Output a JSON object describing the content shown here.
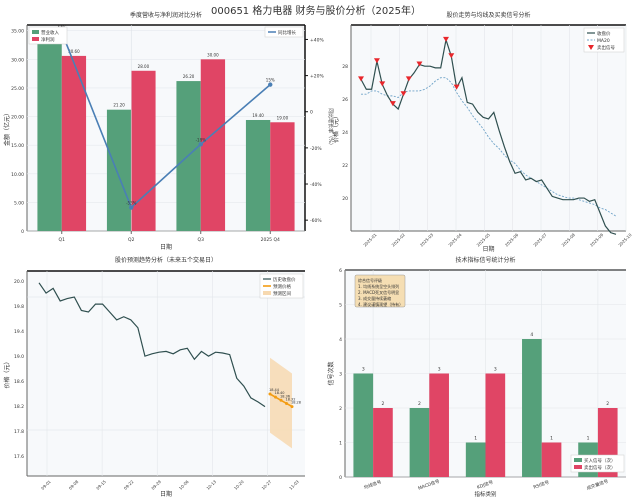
{
  "suptitle": "000651 格力电器 财务与股价分析（2025年）",
  "chart_data": [
    {
      "type": "bar",
      "title": "季度营收与净利润对比分析",
      "xlabel": "日期",
      "ylabel": "金额（亿元）",
      "y2label": "同比增长率（%）",
      "categories": [
        "Q1",
        "Q2",
        "Q3",
        "2025 Q4"
      ],
      "series": [
        {
          "name": "营业收入",
          "color": "#55a07a",
          "values": [
            34.0,
            21.2,
            26.2,
            19.4
          ]
        },
        {
          "name": "净利润",
          "color": "#e04565",
          "values": [
            30.6,
            28.0,
            30.0,
            19.0
          ]
        }
      ],
      "line_series": {
        "name": "同比增长",
        "color": "#4a7fb5",
        "values": [
          44,
          -53,
          -18,
          15
        ]
      },
      "yticks": [
        "0",
        "5.00",
        "10.00",
        "15.00",
        "20.00",
        "25.00",
        "30.00",
        "35.00"
      ],
      "ylim": [
        0,
        36
      ],
      "y2ticks": [
        "-60%",
        "-40%",
        "-20%",
        "0",
        "+20%",
        "+40%"
      ],
      "y2lim": [
        -66,
        48
      ],
      "legend_left": "top-left",
      "legend_right": "top-right",
      "grid": true
    },
    {
      "type": "line",
      "title": "股价走势与均线及买卖信号分析",
      "xlabel": "日期",
      "ylabel": "价格（元）",
      "series": [
        {
          "name": "收盘价",
          "color": "#2f4f4f",
          "style": "solid",
          "values": [
            27.2,
            26.6,
            26.6,
            28.3,
            26.9,
            26.2,
            25.7,
            25.4,
            26.3,
            27.2,
            27.6,
            28.1,
            28.0,
            28.0,
            27.9,
            27.9,
            29.6,
            28.6,
            26.7,
            27.3,
            25.8,
            25.7,
            25.2,
            24.9,
            24.8,
            25.2,
            24.1,
            23.1,
            22.2,
            21.5,
            21.6,
            21.1,
            21.2,
            21.0,
            21.1,
            20.6,
            20.1,
            20.0,
            19.9,
            19.9,
            19.9,
            20.0,
            20.0,
            19.8,
            19.9,
            19.1,
            18.3,
            17.9,
            17.8
          ]
        },
        {
          "name": "MA20",
          "color": "#6fa3c8",
          "style": "dashed",
          "values": [
            26.3,
            26.3,
            26.5,
            26.5,
            26.3,
            26.2,
            26.2,
            26.1,
            26.4,
            26.5,
            26.5,
            26.5,
            26.6,
            26.8,
            27.1,
            27.3,
            27.3,
            27.0,
            26.4,
            25.9,
            25.5,
            25.0,
            24.6,
            24.2,
            23.7,
            23.3,
            23.0,
            22.6,
            22.3,
            22.1,
            21.7,
            21.4,
            21.2,
            21.0,
            20.8,
            20.6,
            20.4,
            20.2,
            20.1,
            20.0,
            20.0,
            19.9,
            19.8,
            19.7,
            19.6,
            19.4,
            19.3,
            19.1,
            18.9
          ]
        },
        {
          "name": "卖出信号",
          "color": "#e8262b",
          "type": "marker-triangle-down",
          "indices": [
            0,
            3,
            4,
            6,
            8,
            9,
            11,
            16,
            17,
            18
          ]
        }
      ],
      "yticks": [
        "20",
        "22",
        "24",
        "26",
        "28"
      ],
      "ylim": [
        18.0,
        30.5
      ],
      "xticks": [
        "2025-01",
        "2025-02",
        "2025-03",
        "2025-04",
        "2025-05",
        "2025-06",
        "2025-07",
        "2025-08",
        "2025-09",
        "2025-10"
      ],
      "legend": "top-right",
      "grid": true
    },
    {
      "type": "line",
      "title": "股价预测趋势分析（未来五个交易日）",
      "xlabel": "日期",
      "ylabel": "价格（元）",
      "series": [
        {
          "name": "历史收盘价",
          "color": "#2f4f4f",
          "values": [
            19.85,
            19.72,
            19.78,
            19.62,
            19.65,
            19.67,
            19.5,
            19.48,
            19.58,
            19.58,
            19.48,
            19.38,
            19.42,
            19.38,
            19.28,
            18.92,
            18.95,
            18.97,
            18.98,
            18.95,
            19.0,
            19.02,
            18.88,
            18.98,
            18.92,
            18.97,
            18.96,
            18.94,
            18.64,
            18.54,
            18.39,
            18.34,
            18.28
          ]
        },
        {
          "name": "预测价格",
          "color": "#f39c12",
          "values": [
            18.44,
            18.4,
            18.36,
            18.32,
            18.28
          ]
        },
        {
          "name": "预测区间",
          "color": "#f7d9b0",
          "upper": [
            18.9,
            18.85,
            18.8,
            18.75,
            18.7
          ],
          "lower": [
            17.95,
            17.9,
            17.85,
            17.8,
            17.75
          ]
        }
      ],
      "yticks": [
        "17.6",
        "17.8",
        "18.2",
        "18.6",
        "19.0",
        "19.4",
        "19.8",
        "20.0"
      ],
      "ylim": [
        17.4,
        20.0
      ],
      "xticks": [
        "09-01",
        "09-08",
        "09-15",
        "09-22",
        "09-29",
        "10-06",
        "10-13",
        "10-20",
        "10-27",
        "11-03"
      ],
      "legend": "top-right",
      "grid": true
    },
    {
      "type": "bar",
      "title": "技术指标信号统计分析",
      "xlabel": "指标类别",
      "ylabel": "信号次数",
      "categories": [
        "均线信号",
        "MACD信号",
        "KDJ信号",
        "RSI信号",
        "成交量信号"
      ],
      "series": [
        {
          "name": "买入信号（次）",
          "color": "#55a07a",
          "values": [
            3,
            2,
            1,
            4,
            1
          ]
        },
        {
          "name": "卖出信号（次）",
          "color": "#e04565",
          "values": [
            2,
            3,
            3,
            1,
            2
          ]
        }
      ],
      "yticks": [
        "0",
        "1",
        "2",
        "3",
        "4",
        "5",
        "6"
      ],
      "ylim": [
        0,
        6
      ],
      "annotation": [
        "综合信号评级",
        "1. 均线系统呈空头排列",
        "2. MACD死叉信号明显",
        "3. 成交量持续萎缩",
        "4. 建议谨慎观望（持有）"
      ],
      "legend": "bottom-right",
      "grid": true
    }
  ]
}
